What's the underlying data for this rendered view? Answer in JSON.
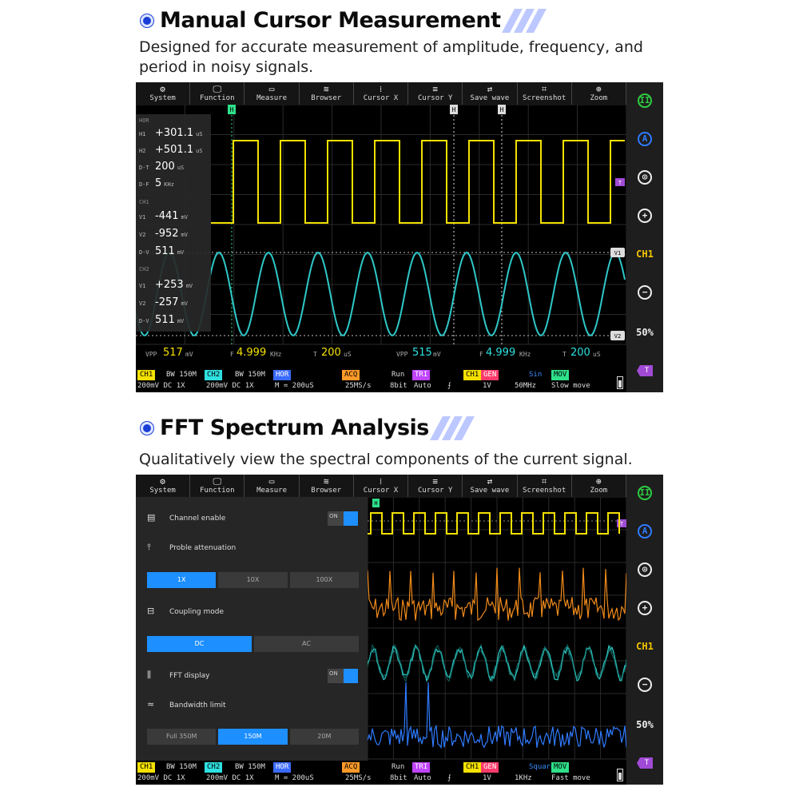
{
  "section1": {
    "title": "Manual Cursor Measurement",
    "description_line1": "Designed for accurate measurement of amplitude, frequency, and",
    "description_line2": "period in noisy signals."
  },
  "section2": {
    "title": "FFT Spectrum Analysis",
    "description": "Qualitatively view the spectral components of the current signal."
  },
  "toolbar": [
    {
      "label": "System",
      "icon": "gear-icon",
      "glyph": "⚙"
    },
    {
      "label": "Function",
      "icon": "monitor-icon",
      "glyph": "🖵"
    },
    {
      "label": "Measure",
      "icon": "ruler-icon",
      "glyph": "▭"
    },
    {
      "label": "Browser",
      "icon": "database-icon",
      "glyph": "≋"
    },
    {
      "label": "Cursor X",
      "icon": "cursor-x-icon",
      "glyph": "⁞"
    },
    {
      "label": "Cursor Y",
      "icon": "cursor-y-icon",
      "glyph": "≡"
    },
    {
      "label": "Save wave",
      "icon": "save-wave-icon",
      "glyph": "⇄"
    },
    {
      "label": "Screenshot",
      "icon": "crop-icon",
      "glyph": "⌗"
    },
    {
      "label": "Zoom",
      "icon": "zoom-icon",
      "glyph": "⊕"
    }
  ],
  "sidebar": {
    "pause": "II",
    "auto": "A",
    "center": "⊙",
    "plus": "+",
    "channel": "CH1",
    "minus": "−",
    "percent": "50%",
    "trigger": "T"
  },
  "measure_panel": {
    "hor_head": "HOR",
    "h1_label": "H1",
    "h1_value": "+301.1",
    "h1_unit": "uS",
    "h2_label": "H2",
    "h2_value": "+501.1",
    "h2_unit": "uS",
    "dt_label": "D-T",
    "dt_value": "200",
    "dt_unit": "uS",
    "df_label": "D-F",
    "df_value": "5",
    "df_unit": "KHz",
    "ch1_head": "CH1",
    "ch1_v1_label": "V1",
    "ch1_v1_value": "-441",
    "ch1_v1_unit": "mV",
    "ch1_v2_label": "V2",
    "ch1_v2_value": "-952",
    "ch1_v2_unit": "mV",
    "ch1_dv_label": "D-V",
    "ch1_dv_value": "511",
    "ch1_dv_unit": "mV",
    "ch2_head": "CH2",
    "ch2_v1_label": "V1",
    "ch2_v1_value": "+253",
    "ch2_v1_unit": "mV",
    "ch2_v2_label": "V2",
    "ch2_v2_value": "-257",
    "ch2_v2_unit": "mV",
    "ch2_dv_label": "D-V",
    "ch2_dv_value": "511",
    "ch2_dv_unit": "mV"
  },
  "measure_bar": {
    "vpp1_label": "VPP",
    "vpp1_value": "517",
    "vpp1_unit": "mV",
    "f1_label": "F",
    "f1_value": "4.999",
    "f1_unit": "KHz",
    "t1_label": "T",
    "t1_value": "200",
    "t1_unit": "uS",
    "vpp2_label": "VPP",
    "vpp2_value": "515",
    "vpp2_unit": "mV",
    "f2_label": "F",
    "f2_value": "4.999",
    "f2_unit": "KHz",
    "t2_label": "T",
    "t2_value": "200",
    "t2_unit": "uS"
  },
  "markers": {
    "h1": "H",
    "h2": "H",
    "cursor1": "H",
    "v1": "V1",
    "v2": "V2",
    "trig": "T"
  },
  "status1": {
    "ch1": "CH1",
    "bw1": "BW 150M",
    "ch2": "CH2",
    "bw2": "BW 150M",
    "hor": "HOR",
    "acq": "ACQ",
    "run": "Run",
    "tri": "TRI",
    "chx": "CH1",
    "gen": "GEN",
    "wave": "Sin",
    "mov": "MOV",
    "r2_ch1": "200mV  DC   1X",
    "r2_ch2": "200mV  DC   1X",
    "r2_hor": "M = 200uS",
    "r2_acq": "25MS/s",
    "r2_bit": "8bit",
    "r2_auto": "Auto",
    "r2_edge": "⨍",
    "r2_gen1": "1V",
    "r2_gen2": "50MHz",
    "r2_mov": "Slow move"
  },
  "status2": {
    "ch1": "CH1",
    "bw1": "BW 150M",
    "ch2": "CH2",
    "bw2": "BW 150M",
    "hor": "HOR",
    "acq": "ACQ",
    "run": "Run",
    "tri": "TRI",
    "chx": "CH1",
    "gen": "GEN",
    "wave": "Square",
    "mov": "MOV",
    "r2_ch1": "200mV  DC   1X",
    "r2_ch2": "200mV  DC   1X",
    "r2_hor": "M = 200uS",
    "r2_acq": "25MS/s",
    "r2_bit": "8bit",
    "r2_auto": "Auto",
    "r2_edge": "⨍",
    "r2_gen1": "1V",
    "r2_gen2": "1KHz",
    "r2_mov": "Fast move"
  },
  "fft_panel": {
    "channel_enable": "Channel enable",
    "probe_attenuation": "Proble attenuation",
    "coupling_mode": "Coupling mode",
    "fft_display": "FFT display",
    "bandwidth_limit": "Bandwidth limit",
    "toggle_on": "ON",
    "attenuation_options": [
      "1X",
      "10X",
      "100X"
    ],
    "coupling_options": [
      "DC",
      "AC"
    ],
    "bandwidth_options": [
      "Full 350M",
      "150M",
      "20M"
    ]
  },
  "colors": {
    "ch1": "#f4e100",
    "ch2": "#2fe0e0",
    "math": "#ff9a2a",
    "fft": "#2f7bff",
    "accent": "#1a3fd6"
  }
}
